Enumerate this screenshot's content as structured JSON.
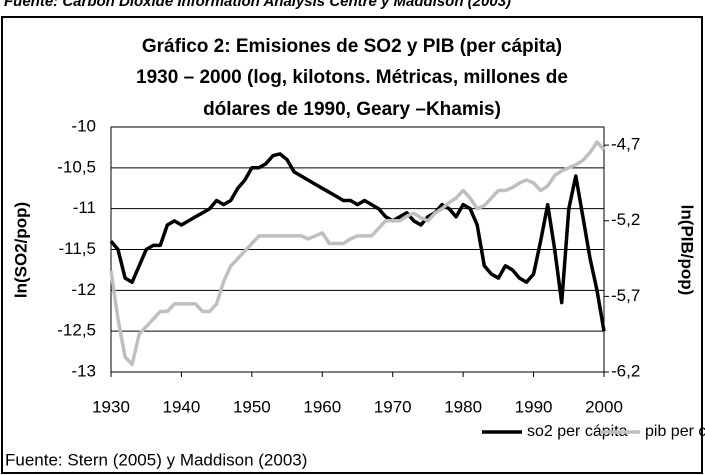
{
  "source_top": "Fuente: Carbon Dioxide Information Analysis Centre y Maddison (2003)",
  "chart_data": {
    "type": "line",
    "title": [
      "Gráfico 2: Emisiones de SO2 y PIB (per cápita)",
      "1930 – 2000 (log, kilotons. Métricas, millones de",
      "dólares de 1990, Geary –Khamis)"
    ],
    "ylabel": "ln(SO2/pop)",
    "y2label": "ln(PIB/pop)",
    "x": [
      1930,
      1931,
      1932,
      1933,
      1934,
      1935,
      1936,
      1937,
      1938,
      1939,
      1940,
      1941,
      1942,
      1943,
      1944,
      1945,
      1946,
      1947,
      1948,
      1949,
      1950,
      1951,
      1952,
      1953,
      1954,
      1955,
      1956,
      1957,
      1958,
      1959,
      1960,
      1961,
      1962,
      1963,
      1964,
      1965,
      1966,
      1967,
      1968,
      1969,
      1970,
      1971,
      1972,
      1973,
      1974,
      1975,
      1976,
      1977,
      1978,
      1979,
      1980,
      1981,
      1982,
      1983,
      1984,
      1985,
      1986,
      1987,
      1988,
      1989,
      1990,
      1991,
      1992,
      1993,
      1994,
      1995,
      1996,
      1997,
      1998,
      1999,
      2000
    ],
    "xlim": [
      1930,
      2000
    ],
    "xticks": [
      1930,
      1940,
      1950,
      1960,
      1970,
      1980,
      1990,
      2000
    ],
    "ylim": [
      -13,
      -10
    ],
    "yticks": [
      -10,
      {
        "value": -10.5,
        "label": "-10,5"
      },
      -11,
      {
        "value": -11.5,
        "label": "-11,5"
      },
      -12,
      {
        "value": -12.5,
        "label": "-12,5"
      },
      -13
    ],
    "y2lim": [
      -6.2,
      -4.58
    ],
    "y2ticks": [
      {
        "value": -4.7,
        "label": "-4,7"
      },
      {
        "value": -5.2,
        "label": "-5,2"
      },
      {
        "value": -5.7,
        "label": "-5,7"
      },
      {
        "value": -6.2,
        "label": "-6,2"
      }
    ],
    "grid": true,
    "legend": "bottom-right",
    "series": [
      {
        "name": "so2 per cápita",
        "color": "#000000",
        "values": [
          -11.4,
          -11.5,
          -11.85,
          -11.9,
          -11.7,
          -11.5,
          -11.45,
          -11.45,
          -11.2,
          -11.15,
          -11.2,
          -11.15,
          -11.1,
          -11.05,
          -11.0,
          -10.9,
          -10.95,
          -10.9,
          -10.75,
          -10.65,
          -10.5,
          -10.5,
          -10.45,
          -10.35,
          -10.33,
          -10.4,
          -10.55,
          -10.6,
          -10.65,
          -10.7,
          -10.75,
          -10.8,
          -10.85,
          -10.9,
          -10.9,
          -10.95,
          -10.9,
          -10.95,
          -11.0,
          -11.1,
          -11.15,
          -11.1,
          -11.05,
          -11.15,
          -11.2,
          -11.1,
          -11.05,
          -10.95,
          -11.0,
          -11.1,
          -10.95,
          -11.0,
          -11.2,
          -11.7,
          -11.8,
          -11.85,
          -11.7,
          -11.75,
          -11.85,
          -11.9,
          -11.8,
          -11.4,
          -10.95,
          -11.5,
          -12.15,
          -11.0,
          -10.6,
          -11.1,
          -11.6,
          -12.0,
          -12.5
        ]
      },
      {
        "name": "pib per cápita",
        "color": "#bfbfbf",
        "axis": "y2",
        "values": [
          -5.53,
          -5.85,
          -6.1,
          -6.15,
          -5.95,
          -5.9,
          -5.85,
          -5.8,
          -5.8,
          -5.75,
          -5.75,
          -5.75,
          -5.75,
          -5.8,
          -5.8,
          -5.75,
          -5.6,
          -5.5,
          -5.45,
          -5.4,
          -5.35,
          -5.3,
          -5.3,
          -5.3,
          -5.3,
          -5.3,
          -5.3,
          -5.3,
          -5.32,
          -5.3,
          -5.28,
          -5.35,
          -5.35,
          -5.35,
          -5.32,
          -5.3,
          -5.3,
          -5.3,
          -5.25,
          -5.2,
          -5.2,
          -5.2,
          -5.17,
          -5.15,
          -5.18,
          -5.2,
          -5.15,
          -5.12,
          -5.08,
          -5.05,
          -5.0,
          -5.05,
          -5.12,
          -5.1,
          -5.05,
          -5.0,
          -5.0,
          -4.98,
          -4.95,
          -4.93,
          -4.95,
          -5.0,
          -4.97,
          -4.9,
          -4.87,
          -4.85,
          -4.83,
          -4.8,
          -4.75,
          -4.68,
          -4.73
        ]
      }
    ],
    "source": "Fuente: Stern (2005) y Maddison (2003)"
  }
}
